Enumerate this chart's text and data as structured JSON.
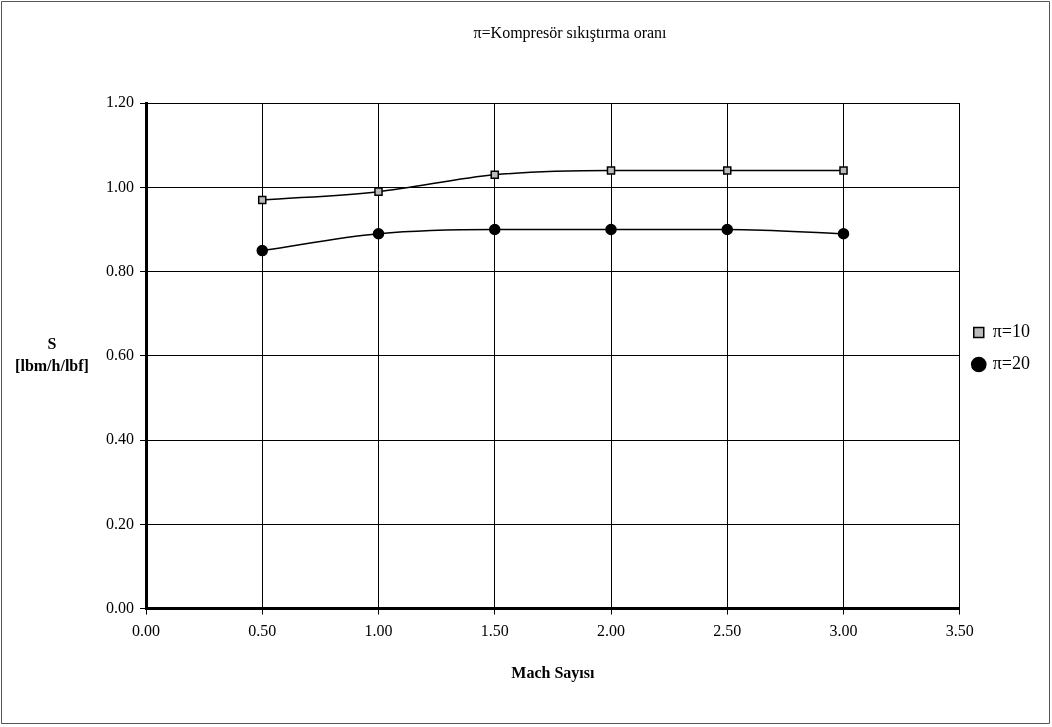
{
  "chart_data": {
    "type": "line",
    "title": "π=Kompresör sıkıştırma oranı",
    "xlabel": "Mach Sayısı",
    "ylabel": "S [lbm/h/lbf]",
    "x": [
      0.5,
      1.0,
      1.5,
      2.0,
      2.5,
      3.0
    ],
    "series": [
      {
        "name": "π=10",
        "color": "#000000",
        "marker": "square",
        "values": [
          0.97,
          0.99,
          1.03,
          1.04,
          1.04,
          1.04
        ]
      },
      {
        "name": "π=20",
        "color": "#000000",
        "marker": "circle",
        "values": [
          0.85,
          0.89,
          0.9,
          0.9,
          0.9,
          0.89
        ]
      }
    ],
    "xlim": [
      0,
      3.5
    ],
    "xticks": [
      {
        "value": 0,
        "label": "0.00"
      },
      {
        "value": 0.5,
        "label": "0.50"
      },
      {
        "value": 1,
        "label": "1.00"
      },
      {
        "value": 1.5,
        "label": "1.50"
      },
      {
        "value": 2,
        "label": "2.00"
      },
      {
        "value": 2.5,
        "label": "2.50"
      },
      {
        "value": 3,
        "label": "3.00"
      },
      {
        "value": 3.5,
        "label": "3.50"
      }
    ],
    "ylim": [
      0,
      1.2
    ],
    "yticks": [
      {
        "value": 0,
        "label": "0.00"
      },
      {
        "value": 0.2,
        "label": "0.20"
      },
      {
        "value": 0.4,
        "label": "0.40"
      },
      {
        "value": 0.6,
        "label": "0.60"
      },
      {
        "value": 0.8,
        "label": "0.80"
      },
      {
        "value": 1,
        "label": "1.00"
      },
      {
        "value": 1.2,
        "label": "1.20"
      }
    ],
    "grid": true,
    "legend": "right",
    "line_style": "solid"
  }
}
